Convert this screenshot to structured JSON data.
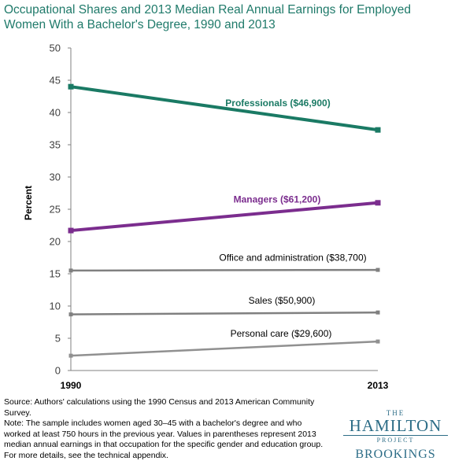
{
  "title": "Occupational Shares and 2013 Median Real Annual Earnings for Employed Women With a Bachelor's Degree, 1990 and 2013",
  "chart_data": {
    "type": "line",
    "x": [
      "1990",
      "2013"
    ],
    "ylabel": "Percent",
    "ylim": [
      0,
      50
    ],
    "yticks": [
      0,
      5,
      10,
      15,
      20,
      25,
      30,
      35,
      40,
      45,
      50
    ],
    "grid": false,
    "series": [
      {
        "name": "Professionals ($46,900)",
        "values": [
          44.0,
          37.3
        ],
        "color": "#1a7a64"
      },
      {
        "name": "Managers ($61,200)",
        "values": [
          21.7,
          26.0
        ],
        "color": "#7b2d8e"
      },
      {
        "name": "Office and administration ($38,700)",
        "values": [
          15.5,
          15.6
        ],
        "color": "#808080"
      },
      {
        "name": "Sales ($50,900)",
        "values": [
          8.7,
          9.0
        ],
        "color": "#808080"
      },
      {
        "name": "Personal care ($29,600)",
        "values": [
          2.3,
          4.5
        ],
        "color": "#909090"
      }
    ]
  },
  "footnote": {
    "source": "Source: Authors' calculations using the 1990 Census and 2013 American Community Survey.",
    "note": "Note: The sample includes women aged 30–45 with a bachelor's degree  and who worked at least 750 hours in the previous year. Values in parentheses represent 2013 median annual earnings in that occupation for the specific gender and education group. For more details, see the technical appendix."
  },
  "logo": {
    "the": "THE",
    "hamilton": "HAMILTON",
    "project": "PROJECT",
    "brookings": "BROOKINGS"
  }
}
